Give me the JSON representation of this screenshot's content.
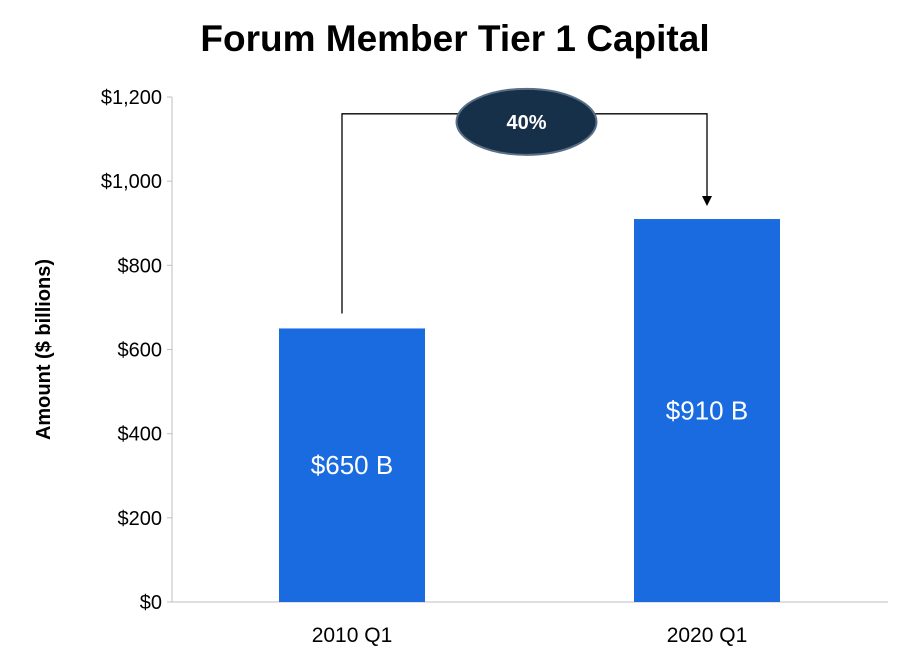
{
  "chart_data": {
    "type": "bar",
    "title": "Forum Member Tier 1 Capital",
    "xlabel": "",
    "ylabel": "Amount ($ billions)",
    "categories": [
      "2010 Q1",
      "2020 Q1"
    ],
    "values": [
      650,
      910
    ],
    "data_labels": [
      "$650 B",
      "$910 B"
    ],
    "ylim": [
      0,
      1200
    ],
    "yticks": [
      0,
      200,
      400,
      600,
      800,
      1000,
      1200
    ],
    "ytick_labels": [
      "$0",
      "$200",
      "$400",
      "$600",
      "$800",
      "$1,000",
      "$1,200"
    ],
    "grid": false,
    "legend": "none",
    "bar_color": "#1a6be0",
    "annotation": {
      "label": "40%",
      "from_category": "2010 Q1",
      "to_category": "2020 Q1",
      "badge_color": "#17304a",
      "badge_text_color": "#ffffff"
    }
  }
}
